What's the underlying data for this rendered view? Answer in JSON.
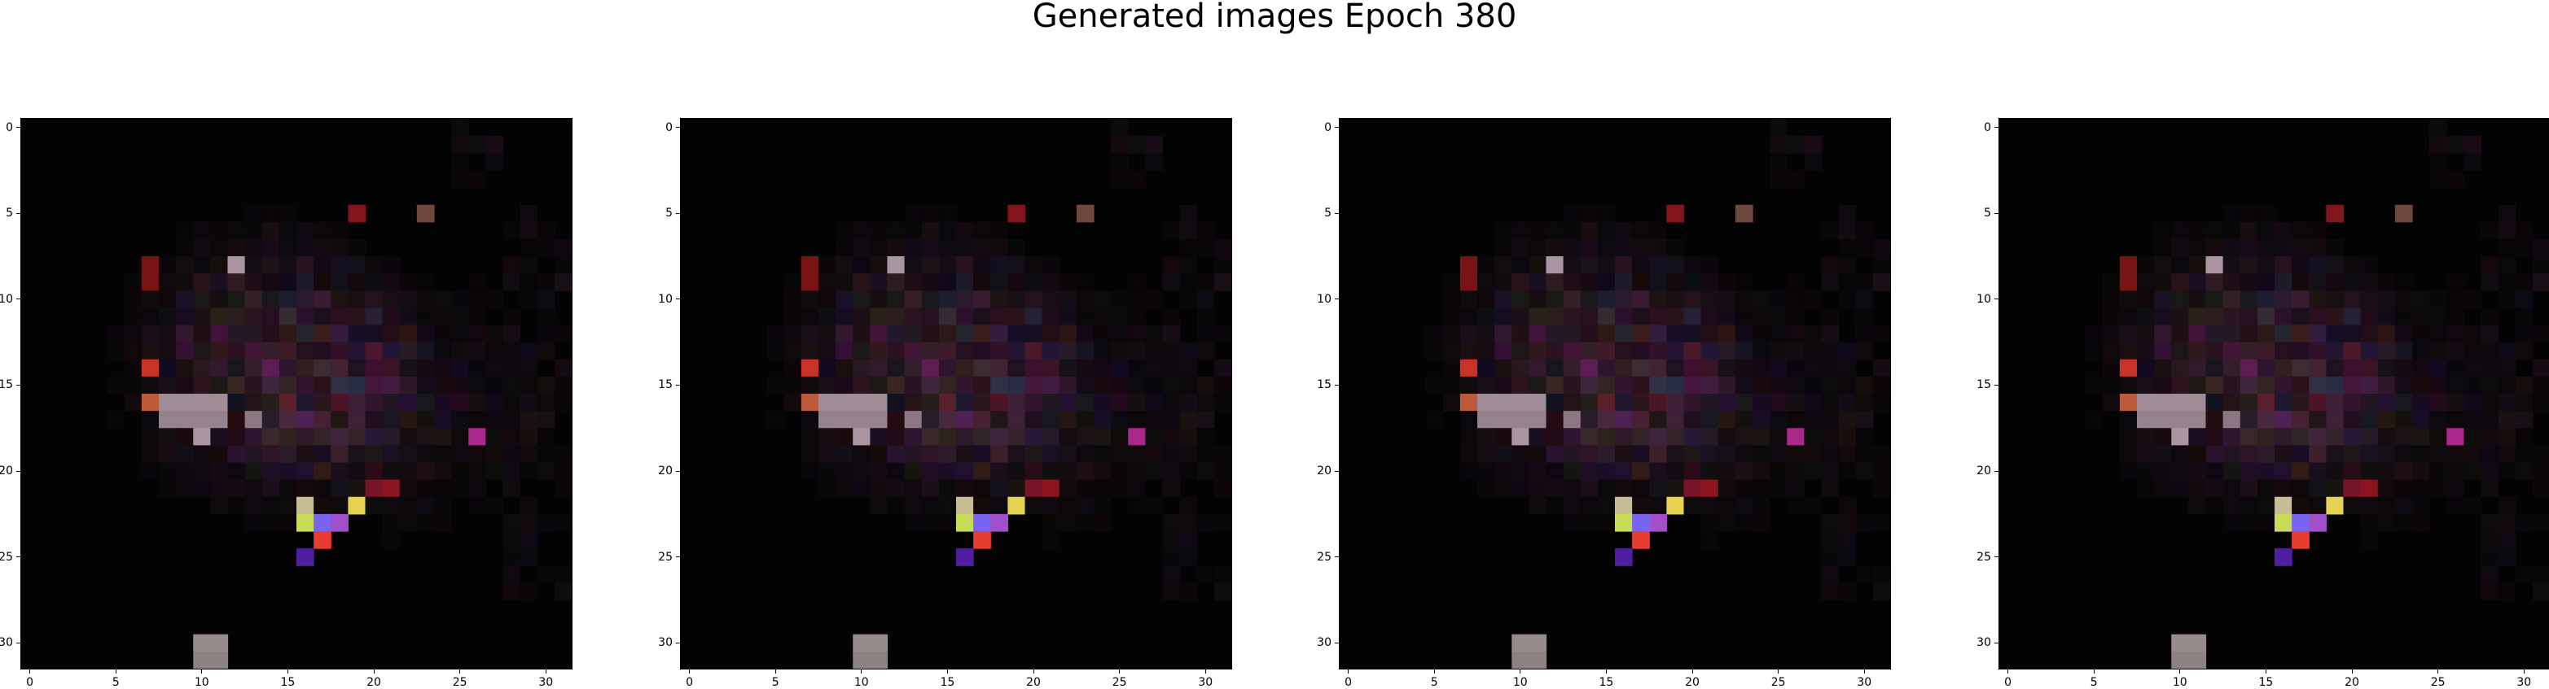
{
  "title": "Generated images Epoch 380",
  "chart_data": [
    {
      "type": "heatmap",
      "title": "",
      "xlim": [
        -0.5,
        31.5
      ],
      "ylim": [
        31.5,
        -0.5
      ],
      "xticks": [
        "0",
        "5",
        "10",
        "15",
        "20",
        "25",
        "30"
      ],
      "yticks": [
        "0",
        "5",
        "10",
        "15",
        "20",
        "25",
        "30"
      ]
    },
    {
      "type": "heatmap",
      "title": "",
      "xlim": [
        -0.5,
        31.5
      ],
      "ylim": [
        31.5,
        -0.5
      ],
      "xticks": [
        "0",
        "5",
        "10",
        "15",
        "20",
        "25",
        "30"
      ],
      "yticks": [
        "0",
        "5",
        "10",
        "15",
        "20",
        "25",
        "30"
      ]
    },
    {
      "type": "heatmap",
      "title": "",
      "xlim": [
        -0.5,
        31.5
      ],
      "ylim": [
        31.5,
        -0.5
      ],
      "xticks": [
        "0",
        "5",
        "10",
        "15",
        "20",
        "25",
        "30"
      ],
      "yticks": [
        "0",
        "5",
        "10",
        "15",
        "20",
        "25",
        "30"
      ]
    },
    {
      "type": "heatmap",
      "title": "",
      "xlim": [
        -0.5,
        31.5
      ],
      "ylim": [
        31.5,
        -0.5
      ],
      "xticks": [
        "0",
        "5",
        "10",
        "15",
        "20",
        "25",
        "30"
      ],
      "yticks": [
        "0",
        "5",
        "10",
        "15",
        "20",
        "25",
        "30"
      ]
    }
  ]
}
